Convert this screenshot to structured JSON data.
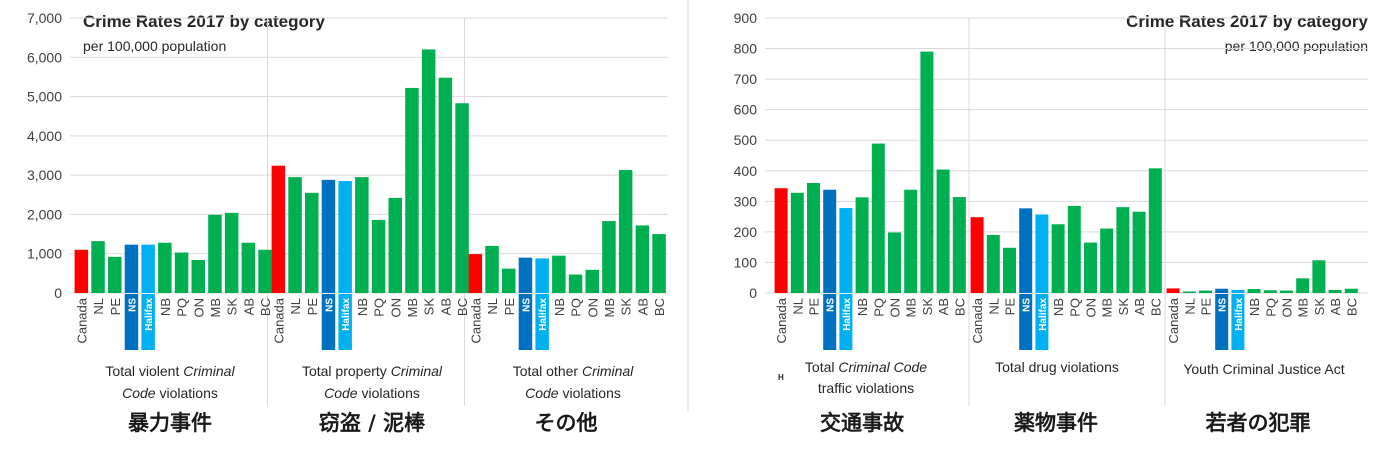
{
  "colors": {
    "canada": "#FF0000",
    "province": "#00B050",
    "ns": "#0070C0",
    "halifax": "#00B0F0",
    "grid": "#D9D9D9"
  },
  "chart_data": [
    {
      "type": "bar",
      "title": "Crime Rates 2017 by category",
      "subtitle": "per 100,000 population",
      "ylim": [
        0,
        7000
      ],
      "yticks": [
        "0",
        "1,000",
        "2,000",
        "3,000",
        "4,000",
        "5,000",
        "6,000",
        "7,000"
      ],
      "grid": true,
      "categories": [
        "Canada",
        "NL",
        "PE",
        "NS",
        "Halifax",
        "NB",
        "PQ",
        "ON",
        "MB",
        "SK",
        "AB",
        "BC"
      ],
      "groups": [
        {
          "label_line1_pre": "Total violent ",
          "label_line1_ital": "Criminal",
          "label_line2_ital": "Code",
          "label_line2_post": " violations",
          "jp_label": "暴力事件",
          "values": [
            1100,
            1320,
            920,
            1230,
            1230,
            1280,
            1030,
            840,
            1990,
            2040,
            1280,
            1100
          ]
        },
        {
          "label_line1_pre": "Total property ",
          "label_line1_ital": "Criminal",
          "label_line2_ital": "Code",
          "label_line2_post": " violations",
          "jp_label": "窃盗 / 泥棒",
          "values": [
            3240,
            2950,
            2550,
            2880,
            2850,
            2950,
            1860,
            2420,
            5220,
            6200,
            5480,
            4830
          ]
        },
        {
          "label_line1_pre": "Total other ",
          "label_line1_ital": "Criminal",
          "label_line2_ital": "Code",
          "label_line2_post": " violations",
          "jp_label": "その他",
          "values": [
            990,
            1200,
            620,
            900,
            880,
            950,
            470,
            590,
            1830,
            3130,
            1720,
            1500
          ]
        }
      ]
    },
    {
      "type": "bar",
      "title": "Crime Rates 2017 by category",
      "subtitle": "per 100,000 population",
      "ylim": [
        0,
        900
      ],
      "yticks": [
        "0",
        "100",
        "200",
        "300",
        "400",
        "500",
        "600",
        "700",
        "800",
        "900"
      ],
      "grid": true,
      "categories": [
        "Canada",
        "NL",
        "PE",
        "NS",
        "Halifax",
        "NB",
        "PQ",
        "ON",
        "MB",
        "SK",
        "AB",
        "BC"
      ],
      "stray_mark": "H",
      "groups": [
        {
          "label_line1_pre": "Total ",
          "label_line1_ital": "Criminal Code",
          "label_line2_ital": "",
          "label_line2_post": "traffic violations",
          "jp_label": "交通事故",
          "values": [
            343,
            328,
            360,
            338,
            278,
            313,
            489,
            198,
            338,
            790,
            404,
            314
          ]
        },
        {
          "label_line1_pre": "Total drug violations",
          "label_line1_ital": "",
          "label_line2_ital": "",
          "label_line2_post": "",
          "jp_label": "薬物事件",
          "values": [
            248,
            190,
            148,
            277,
            257,
            225,
            285,
            165,
            211,
            281,
            266,
            408
          ]
        },
        {
          "label_line1_pre": "Youth Criminal Justice Act",
          "label_line1_ital": "",
          "label_line2_ital": "",
          "label_line2_post": "",
          "jp_label": "若者の犯罪",
          "values": [
            15,
            5,
            8,
            14,
            10,
            13,
            9,
            8,
            48,
            107,
            10,
            14
          ]
        }
      ]
    }
  ]
}
